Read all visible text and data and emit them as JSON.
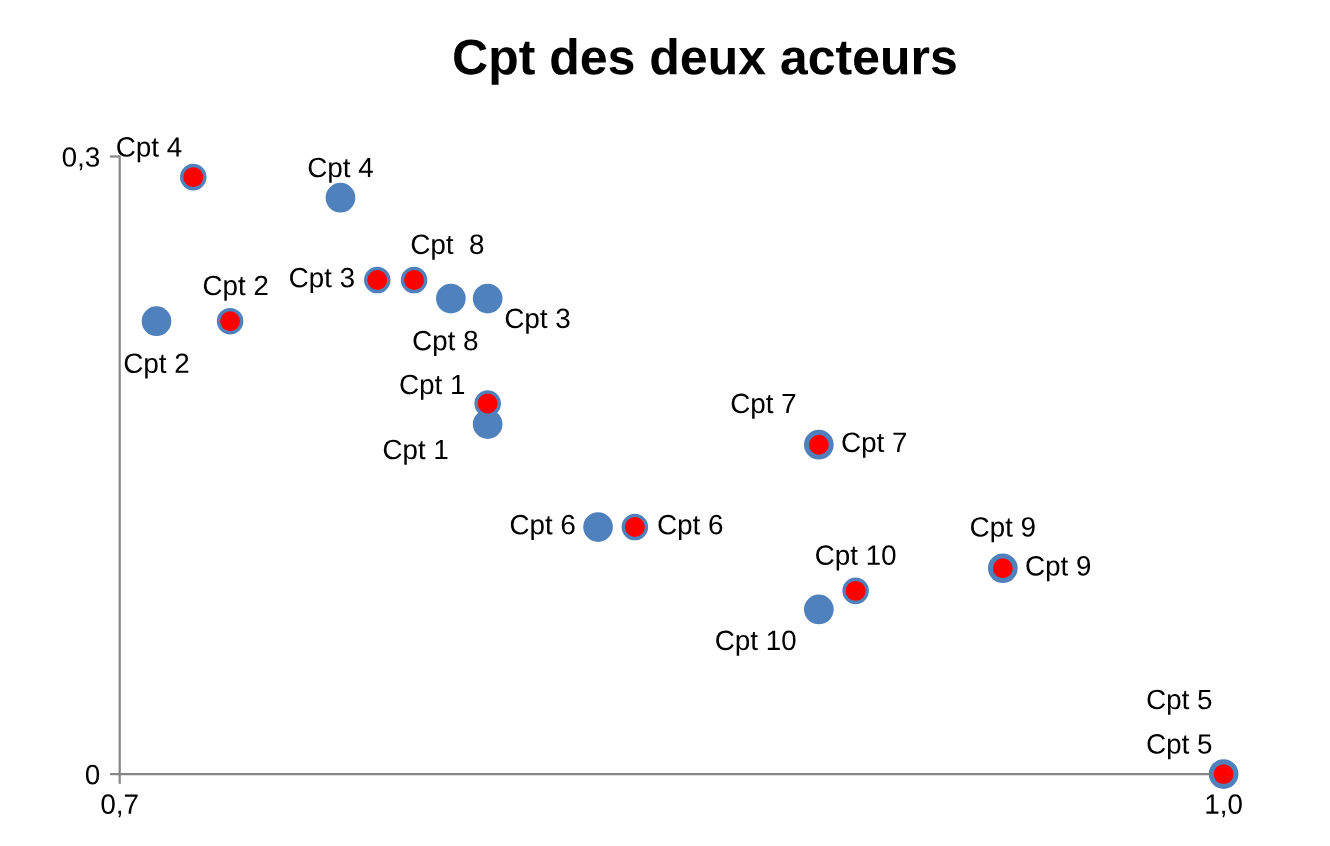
{
  "chart_data": {
    "type": "scatter",
    "title": "Cpt des deux acteurs",
    "series": [
      {
        "color": "#4f81bd",
        "x": [
          0.8,
          0.71,
          0.8,
          0.76,
          1.0,
          0.83,
          0.89,
          0.79,
          0.94,
          0.89
        ],
        "values": [
          0.17,
          0.22,
          0.231,
          0.28,
          0.0,
          0.12,
          0.16,
          0.231,
          0.1,
          0.08
        ],
        "value_labels": [
          "Cpt 1",
          "Cpt 2",
          "Cpt 3",
          "Cpt 4",
          "Cpt 5",
          "Cpt 6",
          "Cpt 7",
          "Cpt 8",
          "Cpt 9",
          "Cpt 10"
        ]
      },
      {
        "color": "#ff0000",
        "x": [
          0.8,
          0.73,
          0.77,
          0.72,
          1.0,
          0.84,
          0.89,
          0.78,
          0.94,
          0.9
        ],
        "values": [
          0.18,
          0.22,
          0.24,
          0.29,
          0.0,
          0.12,
          0.16,
          0.24,
          0.1,
          0.089
        ],
        "value_labels": [
          "Cpt 1",
          "Cpt 2",
          "Cpt 3",
          "Cpt 4",
          "Cpt 5",
          "Cpt 6",
          "Cpt 7",
          "Cpt  8",
          "Cpt 9",
          "Cpt 10"
        ]
      }
    ],
    "xlim": [
      0.7,
      1.0
    ],
    "ylim": [
      0,
      0.3
    ],
    "xticks": [
      {
        "value": 0.7,
        "label": "0,7"
      },
      {
        "value": 1.0,
        "label": "1,0"
      }
    ],
    "yticks": [
      {
        "value": 0,
        "label": "0"
      },
      {
        "value": 0.3,
        "label": "0,3"
      }
    ],
    "marker": "circle",
    "grid": false
  }
}
